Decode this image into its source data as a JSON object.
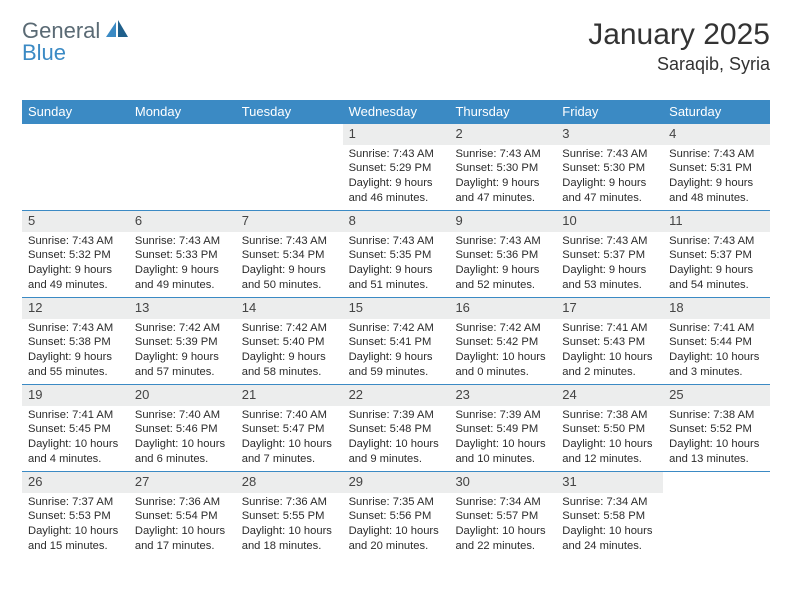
{
  "logo": {
    "word1": "General",
    "word2": "Blue"
  },
  "header": {
    "title": "January 2025",
    "subtitle": "Saraqib, Syria"
  },
  "style": {
    "accent": "#3b8ac4",
    "daynum_bg": "#eceded",
    "row_border": "#3b8ac4",
    "title_fontsize": 30,
    "subtitle_fontsize": 18,
    "dayhead_fontsize": 13,
    "cell_fontsize": 11.2
  },
  "day_headers": [
    "Sunday",
    "Monday",
    "Tuesday",
    "Wednesday",
    "Thursday",
    "Friday",
    "Saturday"
  ],
  "weeks": [
    [
      {
        "empty": true
      },
      {
        "empty": true
      },
      {
        "empty": true
      },
      {
        "n": "1",
        "sr": "Sunrise: 7:43 AM",
        "ss": "Sunset: 5:29 PM",
        "d1": "Daylight: 9 hours",
        "d2": "and 46 minutes."
      },
      {
        "n": "2",
        "sr": "Sunrise: 7:43 AM",
        "ss": "Sunset: 5:30 PM",
        "d1": "Daylight: 9 hours",
        "d2": "and 47 minutes."
      },
      {
        "n": "3",
        "sr": "Sunrise: 7:43 AM",
        "ss": "Sunset: 5:30 PM",
        "d1": "Daylight: 9 hours",
        "d2": "and 47 minutes."
      },
      {
        "n": "4",
        "sr": "Sunrise: 7:43 AM",
        "ss": "Sunset: 5:31 PM",
        "d1": "Daylight: 9 hours",
        "d2": "and 48 minutes."
      }
    ],
    [
      {
        "n": "5",
        "sr": "Sunrise: 7:43 AM",
        "ss": "Sunset: 5:32 PM",
        "d1": "Daylight: 9 hours",
        "d2": "and 49 minutes."
      },
      {
        "n": "6",
        "sr": "Sunrise: 7:43 AM",
        "ss": "Sunset: 5:33 PM",
        "d1": "Daylight: 9 hours",
        "d2": "and 49 minutes."
      },
      {
        "n": "7",
        "sr": "Sunrise: 7:43 AM",
        "ss": "Sunset: 5:34 PM",
        "d1": "Daylight: 9 hours",
        "d2": "and 50 minutes."
      },
      {
        "n": "8",
        "sr": "Sunrise: 7:43 AM",
        "ss": "Sunset: 5:35 PM",
        "d1": "Daylight: 9 hours",
        "d2": "and 51 minutes."
      },
      {
        "n": "9",
        "sr": "Sunrise: 7:43 AM",
        "ss": "Sunset: 5:36 PM",
        "d1": "Daylight: 9 hours",
        "d2": "and 52 minutes."
      },
      {
        "n": "10",
        "sr": "Sunrise: 7:43 AM",
        "ss": "Sunset: 5:37 PM",
        "d1": "Daylight: 9 hours",
        "d2": "and 53 minutes."
      },
      {
        "n": "11",
        "sr": "Sunrise: 7:43 AM",
        "ss": "Sunset: 5:37 PM",
        "d1": "Daylight: 9 hours",
        "d2": "and 54 minutes."
      }
    ],
    [
      {
        "n": "12",
        "sr": "Sunrise: 7:43 AM",
        "ss": "Sunset: 5:38 PM",
        "d1": "Daylight: 9 hours",
        "d2": "and 55 minutes."
      },
      {
        "n": "13",
        "sr": "Sunrise: 7:42 AM",
        "ss": "Sunset: 5:39 PM",
        "d1": "Daylight: 9 hours",
        "d2": "and 57 minutes."
      },
      {
        "n": "14",
        "sr": "Sunrise: 7:42 AM",
        "ss": "Sunset: 5:40 PM",
        "d1": "Daylight: 9 hours",
        "d2": "and 58 minutes."
      },
      {
        "n": "15",
        "sr": "Sunrise: 7:42 AM",
        "ss": "Sunset: 5:41 PM",
        "d1": "Daylight: 9 hours",
        "d2": "and 59 minutes."
      },
      {
        "n": "16",
        "sr": "Sunrise: 7:42 AM",
        "ss": "Sunset: 5:42 PM",
        "d1": "Daylight: 10 hours",
        "d2": "and 0 minutes."
      },
      {
        "n": "17",
        "sr": "Sunrise: 7:41 AM",
        "ss": "Sunset: 5:43 PM",
        "d1": "Daylight: 10 hours",
        "d2": "and 2 minutes."
      },
      {
        "n": "18",
        "sr": "Sunrise: 7:41 AM",
        "ss": "Sunset: 5:44 PM",
        "d1": "Daylight: 10 hours",
        "d2": "and 3 minutes."
      }
    ],
    [
      {
        "n": "19",
        "sr": "Sunrise: 7:41 AM",
        "ss": "Sunset: 5:45 PM",
        "d1": "Daylight: 10 hours",
        "d2": "and 4 minutes."
      },
      {
        "n": "20",
        "sr": "Sunrise: 7:40 AM",
        "ss": "Sunset: 5:46 PM",
        "d1": "Daylight: 10 hours",
        "d2": "and 6 minutes."
      },
      {
        "n": "21",
        "sr": "Sunrise: 7:40 AM",
        "ss": "Sunset: 5:47 PM",
        "d1": "Daylight: 10 hours",
        "d2": "and 7 minutes."
      },
      {
        "n": "22",
        "sr": "Sunrise: 7:39 AM",
        "ss": "Sunset: 5:48 PM",
        "d1": "Daylight: 10 hours",
        "d2": "and 9 minutes."
      },
      {
        "n": "23",
        "sr": "Sunrise: 7:39 AM",
        "ss": "Sunset: 5:49 PM",
        "d1": "Daylight: 10 hours",
        "d2": "and 10 minutes."
      },
      {
        "n": "24",
        "sr": "Sunrise: 7:38 AM",
        "ss": "Sunset: 5:50 PM",
        "d1": "Daylight: 10 hours",
        "d2": "and 12 minutes."
      },
      {
        "n": "25",
        "sr": "Sunrise: 7:38 AM",
        "ss": "Sunset: 5:52 PM",
        "d1": "Daylight: 10 hours",
        "d2": "and 13 minutes."
      }
    ],
    [
      {
        "n": "26",
        "sr": "Sunrise: 7:37 AM",
        "ss": "Sunset: 5:53 PM",
        "d1": "Daylight: 10 hours",
        "d2": "and 15 minutes."
      },
      {
        "n": "27",
        "sr": "Sunrise: 7:36 AM",
        "ss": "Sunset: 5:54 PM",
        "d1": "Daylight: 10 hours",
        "d2": "and 17 minutes."
      },
      {
        "n": "28",
        "sr": "Sunrise: 7:36 AM",
        "ss": "Sunset: 5:55 PM",
        "d1": "Daylight: 10 hours",
        "d2": "and 18 minutes."
      },
      {
        "n": "29",
        "sr": "Sunrise: 7:35 AM",
        "ss": "Sunset: 5:56 PM",
        "d1": "Daylight: 10 hours",
        "d2": "and 20 minutes."
      },
      {
        "n": "30",
        "sr": "Sunrise: 7:34 AM",
        "ss": "Sunset: 5:57 PM",
        "d1": "Daylight: 10 hours",
        "d2": "and 22 minutes."
      },
      {
        "n": "31",
        "sr": "Sunrise: 7:34 AM",
        "ss": "Sunset: 5:58 PM",
        "d1": "Daylight: 10 hours",
        "d2": "and 24 minutes."
      },
      {
        "empty": true
      }
    ]
  ]
}
